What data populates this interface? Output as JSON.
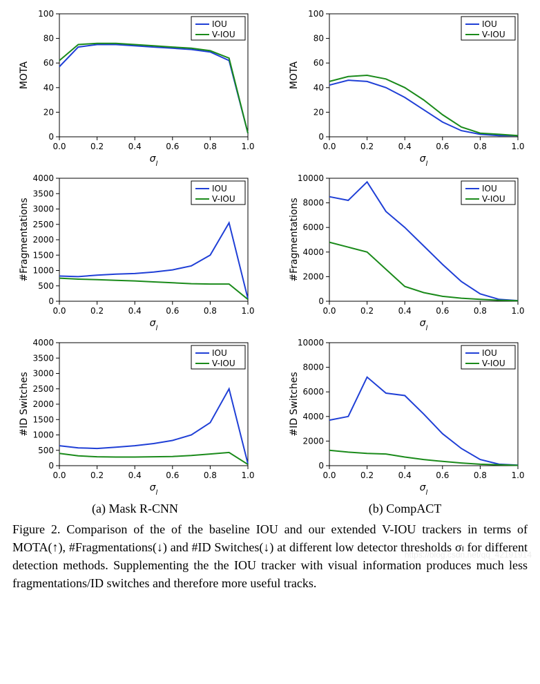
{
  "colors": {
    "iou": "#1f3fd6",
    "viou": "#1a8a1a",
    "axis": "#000000",
    "background": "#ffffff"
  },
  "legend": {
    "items": [
      "IOU",
      "V-IOU"
    ]
  },
  "x": {
    "label": "σₗ",
    "ticks": [
      0.0,
      0.2,
      0.4,
      0.6,
      0.8,
      1.0
    ],
    "lim": [
      0.0,
      1.0
    ]
  },
  "charts": [
    {
      "id": "a_mota",
      "col": "a",
      "ylabel": "MOTA",
      "ylim": [
        0,
        100
      ],
      "ytick_step": 20,
      "series": {
        "IOU": [
          57,
          73,
          75,
          75,
          74,
          73,
          72,
          71,
          69,
          62,
          3
        ],
        "V-IOU": [
          62,
          75,
          76,
          76,
          75,
          74,
          73,
          72,
          70,
          64,
          3
        ]
      },
      "xvals": [
        0.0,
        0.1,
        0.2,
        0.3,
        0.4,
        0.5,
        0.6,
        0.7,
        0.8,
        0.9,
        1.0
      ]
    },
    {
      "id": "b_mota",
      "col": "b",
      "ylabel": "MOTA",
      "ylim": [
        0,
        100
      ],
      "ytick_step": 20,
      "series": {
        "IOU": [
          42,
          46,
          45,
          40,
          32,
          22,
          12,
          5,
          2,
          1,
          1
        ],
        "V-IOU": [
          45,
          49,
          50,
          47,
          40,
          30,
          18,
          8,
          3,
          2,
          1
        ]
      },
      "xvals": [
        0.0,
        0.1,
        0.2,
        0.3,
        0.4,
        0.5,
        0.6,
        0.7,
        0.8,
        0.9,
        1.0
      ]
    },
    {
      "id": "a_frag",
      "col": "a",
      "ylabel": "#Fragmentations",
      "ylim": [
        0,
        4000
      ],
      "ytick_step": 500,
      "series": {
        "IOU": [
          820,
          800,
          850,
          880,
          900,
          950,
          1020,
          1150,
          1500,
          2550,
          80
        ],
        "V-IOU": [
          750,
          720,
          700,
          680,
          660,
          630,
          600,
          570,
          560,
          560,
          60
        ]
      },
      "xvals": [
        0.0,
        0.1,
        0.2,
        0.3,
        0.4,
        0.5,
        0.6,
        0.7,
        0.8,
        0.9,
        1.0
      ]
    },
    {
      "id": "b_frag",
      "col": "b",
      "ylabel": "#Fragmentations",
      "ylim": [
        0,
        10000
      ],
      "ytick_step": 2000,
      "series": {
        "IOU": [
          8500,
          8200,
          9700,
          7300,
          6000,
          4500,
          3000,
          1600,
          600,
          150,
          50
        ],
        "V-IOU": [
          4800,
          4400,
          4000,
          2600,
          1200,
          700,
          400,
          250,
          150,
          80,
          40
        ]
      },
      "xvals": [
        0.0,
        0.1,
        0.2,
        0.3,
        0.4,
        0.5,
        0.6,
        0.7,
        0.8,
        0.9,
        1.0
      ]
    },
    {
      "id": "a_ids",
      "col": "a",
      "ylabel": "#ID Switches",
      "ylim": [
        0,
        4000
      ],
      "ytick_step": 500,
      "series": {
        "IOU": [
          650,
          580,
          560,
          600,
          650,
          720,
          820,
          1000,
          1400,
          2500,
          60
        ],
        "V-IOU": [
          400,
          320,
          290,
          280,
          280,
          290,
          300,
          330,
          380,
          430,
          40
        ]
      },
      "xvals": [
        0.0,
        0.1,
        0.2,
        0.3,
        0.4,
        0.5,
        0.6,
        0.7,
        0.8,
        0.9,
        1.0
      ]
    },
    {
      "id": "b_ids",
      "col": "b",
      "ylabel": "#ID Switches",
      "ylim": [
        0,
        10000
      ],
      "ytick_step": 2000,
      "series": {
        "IOU": [
          3700,
          4000,
          7200,
          5900,
          5700,
          4200,
          2600,
          1400,
          500,
          120,
          40
        ],
        "V-IOU": [
          1250,
          1100,
          1000,
          950,
          700,
          500,
          350,
          220,
          120,
          70,
          30
        ]
      },
      "xvals": [
        0.0,
        0.1,
        0.2,
        0.3,
        0.4,
        0.5,
        0.6,
        0.7,
        0.8,
        0.9,
        1.0
      ]
    }
  ],
  "subcaptions": {
    "a": "(a) Mask R-CNN",
    "b": "(b) CompACT"
  },
  "caption": "Figure 2. Comparison of the of the baseline IOU and our extended V-IOU trackers in terms of MOTA(↑), #Fragmentations(↓) and #ID Switches(↓) at different low detector thresholds σₗ for different detection methods. Supplementing the the IOU tracker with visual information produces much less fragmentations/ID switches and therefore more useful tracks.",
  "watermark": "https://blog.csdn.net/qq_42191914"
}
